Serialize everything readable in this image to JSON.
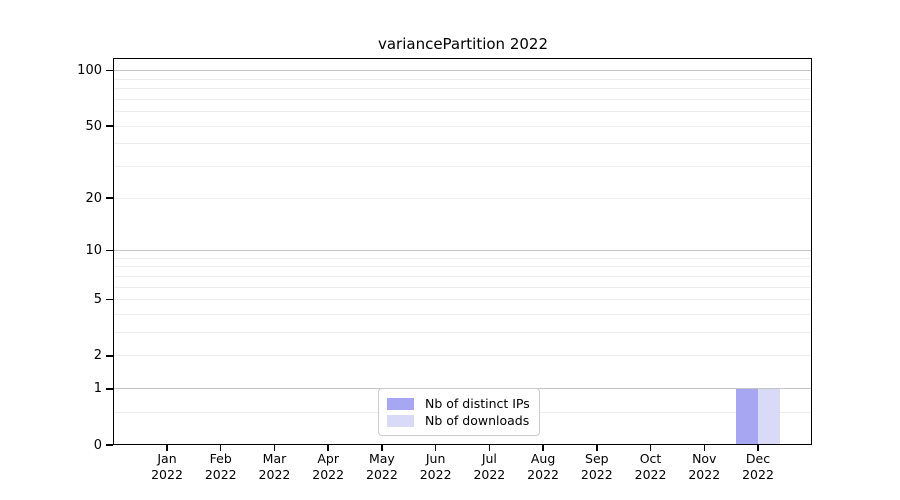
{
  "figure": {
    "background": "#ffffff"
  },
  "chart_data": {
    "type": "bar",
    "title": "variancePartition 2022",
    "categories": [
      "Jan",
      "Feb",
      "Mar",
      "Apr",
      "May",
      "Jun",
      "Jul",
      "Aug",
      "Sep",
      "Oct",
      "Nov",
      "Dec"
    ],
    "category_sublabel": "2022",
    "series": [
      {
        "name": "Nb of distinct IPs",
        "color": "#a6a6f2",
        "values": [
          0,
          0,
          0,
          0,
          0,
          0,
          0,
          0,
          0,
          0,
          0,
          1
        ]
      },
      {
        "name": "Nb of downloads",
        "color": "#d9d9f8",
        "values": [
          0,
          0,
          0,
          0,
          0,
          0,
          0,
          0,
          0,
          0,
          0,
          1
        ]
      }
    ],
    "xlabel": "",
    "ylabel": "",
    "y_axis": {
      "scale": "log1p",
      "tick_values": [
        "100",
        "50",
        "20",
        "10",
        "5",
        "2",
        "1",
        "0"
      ],
      "major_gridlines": [
        1,
        10,
        100
      ],
      "minor_gridlines": [
        0.5,
        2,
        3,
        4,
        5,
        6,
        7,
        8,
        9,
        20,
        30,
        40,
        50,
        60,
        70,
        80,
        90
      ],
      "top_value": 117,
      "ylim": [
        0,
        117
      ]
    },
    "legend": {
      "position": "lower center",
      "entries": [
        {
          "label": "Nb of distinct IPs",
          "color": "#a6a6f2"
        },
        {
          "label": "Nb of downloads",
          "color": "#d9d9f8"
        }
      ]
    },
    "grid": "horizontal",
    "style": {
      "major_grid_color": "#c4c4c4",
      "minor_grid_color": "#ededed",
      "axis_color": "#000000",
      "text_color": "#000000"
    }
  }
}
